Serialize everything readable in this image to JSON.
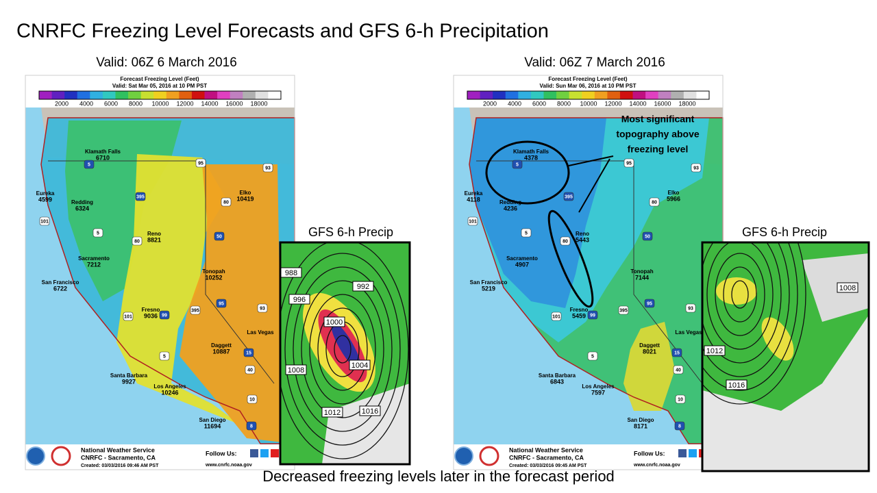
{
  "title": "CNRFC Freezing Level Forecasts and GFS 6-h Precipitation",
  "caption": "Decreased freezing levels later in the forecast period",
  "annotation": [
    "Most significant",
    "topography above",
    "freezing level"
  ],
  "panels": [
    {
      "valid": "Valid: 06Z 6 March 2016",
      "map_title": "Forecast Freezing Level (Feet)",
      "map_subtitle": "Valid: Sat Mar 05, 2016 at 10 PM PST",
      "colorbar_labels": [
        "2000",
        "4000",
        "6000",
        "8000",
        "10000",
        "12000",
        "14000",
        "16000",
        "18000"
      ],
      "cities": [
        {
          "name": "Klamath Falls",
          "value": "6710"
        },
        {
          "name": "Eureka",
          "value": "4599"
        },
        {
          "name": "Redding",
          "value": "6324"
        },
        {
          "name": "Reno",
          "value": "8821"
        },
        {
          "name": "Elko",
          "value": "10419"
        },
        {
          "name": "Sacramento",
          "value": "7212"
        },
        {
          "name": "San Francisco",
          "value": "6722"
        },
        {
          "name": "Tonopah",
          "value": "10252"
        },
        {
          "name": "Fresno",
          "value": "9036"
        },
        {
          "name": "Las Vegas"
        },
        {
          "name": "Daggett",
          "value": "10887"
        },
        {
          "name": "Santa Barbara",
          "value": "9927"
        },
        {
          "name": "Los Angeles",
          "value": "10246"
        },
        {
          "name": "San Diego",
          "value": "11694"
        }
      ],
      "highways": [
        "5",
        "95",
        "93",
        "395",
        "80",
        "101",
        "50",
        "5",
        "80",
        "95",
        "93",
        "101",
        "99",
        "395",
        "5",
        "15",
        "40",
        "10",
        "8"
      ],
      "footer": {
        "org": "National Weather Service",
        "office": "CNRFC - Sacramento, CA",
        "created": "Created: 03/03/2016 09:46 AM PST",
        "follow": "Follow Us:",
        "url": "www.cnrfc.noaa.gov"
      },
      "inset": {
        "title": "GFS 6-h Precip",
        "contours": [
          "988",
          "996",
          "992",
          "1000",
          "1004",
          "1008",
          "1012",
          "1016"
        ]
      }
    },
    {
      "valid": "Valid: 06Z 7 March 2016",
      "map_title": "Forecast Freezing Level (Feet)",
      "map_subtitle": "Valid: Sun Mar 06, 2016 at 10 PM PST",
      "colorbar_labels": [
        "2000",
        "4000",
        "6000",
        "8000",
        "10000",
        "12000",
        "14000",
        "16000",
        "18000"
      ],
      "cities": [
        {
          "name": "Klamath Falls",
          "value": "4378"
        },
        {
          "name": "Eureka",
          "value": "4118"
        },
        {
          "name": "Redding",
          "value": "4236"
        },
        {
          "name": "Reno",
          "value": "5443"
        },
        {
          "name": "Elko",
          "value": "5966"
        },
        {
          "name": "Sacramento",
          "value": "4907"
        },
        {
          "name": "San Francisco",
          "value": "5219"
        },
        {
          "name": "Tonopah",
          "value": "7144"
        },
        {
          "name": "Fresno",
          "value": "5459"
        },
        {
          "name": "Las Vegas"
        },
        {
          "name": "Daggett",
          "value": "8021"
        },
        {
          "name": "Santa Barbara",
          "value": "6843"
        },
        {
          "name": "Los Angeles",
          "value": "7597"
        },
        {
          "name": "San Diego",
          "value": "8171"
        }
      ],
      "highways": [
        "5",
        "95",
        "93",
        "395",
        "80",
        "101",
        "50",
        "5",
        "80",
        "95",
        "93",
        "101",
        "99",
        "395",
        "5",
        "15",
        "40",
        "10",
        "8"
      ],
      "footer": {
        "org": "National Weather Service",
        "office": "CNRFC - Sacramento, CA",
        "created": "Created: 03/03/2016 09:45 AM PST",
        "follow": "Follow Us:",
        "url": "www.cnrfc.noaa.gov"
      },
      "inset": {
        "title": "GFS 6-h Precip",
        "contours": [
          "1008",
          "1012",
          "1016"
        ]
      }
    }
  ]
}
